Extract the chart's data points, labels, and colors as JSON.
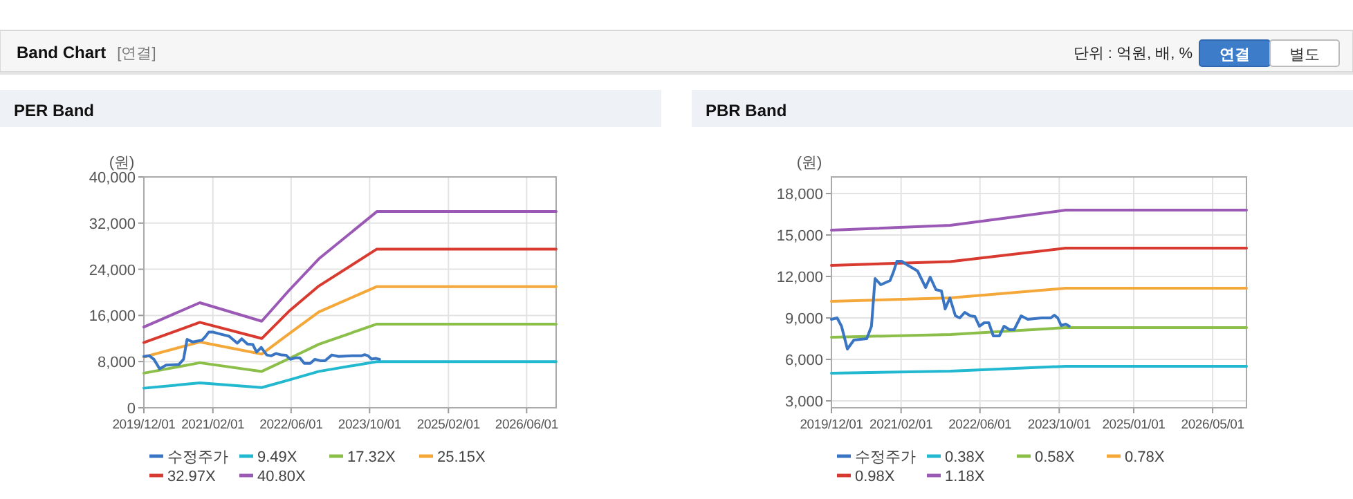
{
  "chart_data": [
    {
      "type": "other",
      "title": "Band Chart",
      "annotations": [
        "[연결]",
        "단위 : 억원, 배, %",
        "연결",
        "별도"
      ]
    },
    {
      "type": "line",
      "title": "PER Band",
      "ylabel": "(원)",
      "xlim": [
        "2019-12-01",
        "2026-12-01"
      ],
      "ylim": [
        0,
        40000
      ],
      "xticks": [
        {
          "value": "2019-12-01",
          "label": "2019/12/01"
        },
        {
          "value": "2021-02-01",
          "label": "2021/02/01"
        },
        {
          "value": "2022-06-01",
          "label": "2022/06/01"
        },
        {
          "value": "2023-10-01",
          "label": "2023/10/01"
        },
        {
          "value": "2025-02-01",
          "label": "2025/02/01"
        },
        {
          "value": "2026-06-01",
          "label": "2026/06/01"
        }
      ],
      "yticks": [
        0,
        {
          "value": 8000,
          "label": "8,000"
        },
        {
          "value": 16000,
          "label": "16,000"
        },
        {
          "value": 24000,
          "label": "24,000"
        },
        {
          "value": 32000,
          "label": "32,000"
        },
        {
          "value": 40000,
          "label": "40,000"
        }
      ],
      "grid": true,
      "legend": "bottom",
      "marker": "none",
      "series": [
        {
          "name": "수정주가",
          "color": "#3a75c4",
          "x": [
            "2019-12-01",
            "2020-01-05",
            "2020-02-01",
            "2020-03-08",
            "2020-04-17",
            "2020-07-05",
            "2020-08-03",
            "2020-08-25",
            "2020-09-29",
            "2020-11-25",
            "2020-12-17",
            "2021-01-06",
            "2021-02-04",
            "2021-03-16",
            "2021-05-13",
            "2021-07-02",
            "2021-07-30",
            "2021-09-03",
            "2021-10-07",
            "2021-10-30",
            "2021-11-28",
            "2022-01-01",
            "2022-01-28",
            "2022-02-27",
            "2022-04-03",
            "2022-05-01",
            "2022-05-28",
            "2022-06-27",
            "2022-07-25",
            "2022-08-22",
            "2022-09-28",
            "2022-10-27",
            "2022-11-30",
            "2022-12-28",
            "2023-02-09",
            "2023-03-22",
            "2023-06-15",
            "2023-08-10",
            "2023-09-01",
            "2023-09-22",
            "2023-10-13",
            "2023-11-10",
            "2023-12-02"
          ],
          "values": [
            8900,
            9000,
            8400,
            6750,
            7400,
            7500,
            8400,
            11850,
            11400,
            11700,
            12350,
            13100,
            13100,
            12800,
            12400,
            11200,
            11950,
            11050,
            10950,
            9650,
            10450,
            9150,
            9000,
            9400,
            9150,
            9100,
            8400,
            8650,
            8650,
            7700,
            7700,
            8400,
            8150,
            8150,
            9150,
            8900,
            9000,
            9000,
            9200,
            9000,
            8450,
            8550,
            8400
          ]
        },
        {
          "name": "9.49X",
          "color": "#22b8cf",
          "x": [
            "2019-12-01",
            "2020-11-12",
            "2021-12-01",
            "2022-05-18",
            "2022-11-20",
            "2023-11-15",
            "2026-12-01"
          ],
          "values": [
            3400,
            4300,
            3500,
            4800,
            6300,
            8000,
            8000
          ]
        },
        {
          "name": "17.32X",
          "color": "#8cbf4a",
          "x": [
            "2019-12-01",
            "2020-11-12",
            "2021-12-01",
            "2022-05-18",
            "2022-11-20",
            "2023-11-15",
            "2026-12-01"
          ],
          "values": [
            6000,
            7800,
            6300,
            8500,
            11000,
            14500,
            14500
          ]
        },
        {
          "name": "25.15X",
          "color": "#f5a83a",
          "x": [
            "2019-12-01",
            "2020-11-12",
            "2021-12-01",
            "2022-05-18",
            "2022-11-20",
            "2023-11-15",
            "2026-12-01"
          ],
          "values": [
            8800,
            11400,
            9300,
            12800,
            16600,
            21000,
            21000
          ]
        },
        {
          "name": "32.97X",
          "color": "#d83a2f",
          "x": [
            "2019-12-01",
            "2020-11-12",
            "2021-12-01",
            "2022-05-18",
            "2022-11-20",
            "2023-11-15",
            "2026-12-01"
          ],
          "values": [
            11300,
            14800,
            12000,
            16700,
            21100,
            27500,
            27500
          ]
        },
        {
          "name": "40.80X",
          "color": "#9b59b6",
          "x": [
            "2019-12-01",
            "2020-11-12",
            "2021-12-01",
            "2022-05-18",
            "2022-11-20",
            "2023-11-15",
            "2026-12-01"
          ],
          "values": [
            14000,
            18200,
            15000,
            20300,
            25800,
            34000,
            34000
          ]
        }
      ]
    },
    {
      "type": "line",
      "title": "PBR Band",
      "ylabel": "(원)",
      "xlim": [
        "2019-12-01",
        "2026-11-25"
      ],
      "ylim": [
        2500,
        19200
      ],
      "xticks": [
        {
          "value": "2019-12-01",
          "label": "2019/12/01"
        },
        {
          "value": "2021-02-01",
          "label": "2021/02/01"
        },
        {
          "value": "2022-06-01",
          "label": "2022/06/01"
        },
        {
          "value": "2023-10-01",
          "label": "2023/10/01"
        },
        {
          "value": "2025-01-01",
          "label": "2025/01/01"
        },
        {
          "value": "2026-05-01",
          "label": "2026/05/01"
        }
      ],
      "yticks": [
        {
          "value": 3000,
          "label": "3,000"
        },
        {
          "value": 6000,
          "label": "6,000"
        },
        {
          "value": 9000,
          "label": "9,000"
        },
        {
          "value": 12000,
          "label": "12,000"
        },
        {
          "value": 15000,
          "label": "15,000"
        },
        {
          "value": 18000,
          "label": "18,000"
        }
      ],
      "grid": true,
      "legend": "bottom",
      "marker": "none",
      "series": [
        {
          "name": "수정주가",
          "color": "#3a75c4",
          "x": [
            "2019-12-01",
            "2020-01-05",
            "2020-02-01",
            "2020-03-08",
            "2020-04-17",
            "2020-07-05",
            "2020-08-03",
            "2020-08-25",
            "2020-09-29",
            "2020-11-25",
            "2020-12-17",
            "2021-01-06",
            "2021-02-04",
            "2021-03-16",
            "2021-05-13",
            "2021-07-02",
            "2021-07-30",
            "2021-09-03",
            "2021-10-07",
            "2021-10-30",
            "2021-11-28",
            "2022-01-01",
            "2022-01-28",
            "2022-02-27",
            "2022-04-03",
            "2022-05-01",
            "2022-05-28",
            "2022-06-27",
            "2022-07-25",
            "2022-08-22",
            "2022-09-28",
            "2022-10-27",
            "2022-11-30",
            "2022-12-28",
            "2023-02-09",
            "2023-03-22",
            "2023-06-15",
            "2023-08-10",
            "2023-09-01",
            "2023-09-22",
            "2023-10-13",
            "2023-11-10",
            "2023-12-02"
          ],
          "values": [
            8900,
            9000,
            8400,
            6750,
            7400,
            7500,
            8400,
            11850,
            11400,
            11700,
            12350,
            13100,
            13100,
            12800,
            12400,
            11200,
            11950,
            11050,
            10950,
            9650,
            10450,
            9150,
            9000,
            9400,
            9150,
            9100,
            8400,
            8650,
            8650,
            7700,
            7700,
            8400,
            8150,
            8150,
            9150,
            8900,
            9000,
            9000,
            9200,
            9000,
            8450,
            8550,
            8400
          ]
        },
        {
          "name": "0.38X",
          "color": "#22b8cf",
          "x": [
            "2019-12-01",
            "2021-12-01",
            "2023-11-10",
            "2026-11-25"
          ],
          "values": [
            5000,
            5150,
            5500,
            5500
          ]
        },
        {
          "name": "0.58X",
          "color": "#8cbf4a",
          "x": [
            "2019-12-01",
            "2021-12-01",
            "2023-11-10",
            "2026-11-25"
          ],
          "values": [
            7600,
            7800,
            8300,
            8300
          ]
        },
        {
          "name": "0.78X",
          "color": "#f5a83a",
          "x": [
            "2019-12-01",
            "2021-12-01",
            "2023-11-10",
            "2026-11-25"
          ],
          "values": [
            10200,
            10450,
            11150,
            11150
          ]
        },
        {
          "name": "0.98X",
          "color": "#d83a2f",
          "x": [
            "2019-12-01",
            "2021-12-01",
            "2023-11-10",
            "2026-11-25"
          ],
          "values": [
            12800,
            13080,
            14050,
            14050
          ]
        },
        {
          "name": "1.18X",
          "color": "#9b59b6",
          "x": [
            "2019-12-01",
            "2021-12-01",
            "2023-11-10",
            "2026-11-25"
          ],
          "values": [
            15350,
            15700,
            16800,
            16800
          ]
        }
      ]
    }
  ]
}
